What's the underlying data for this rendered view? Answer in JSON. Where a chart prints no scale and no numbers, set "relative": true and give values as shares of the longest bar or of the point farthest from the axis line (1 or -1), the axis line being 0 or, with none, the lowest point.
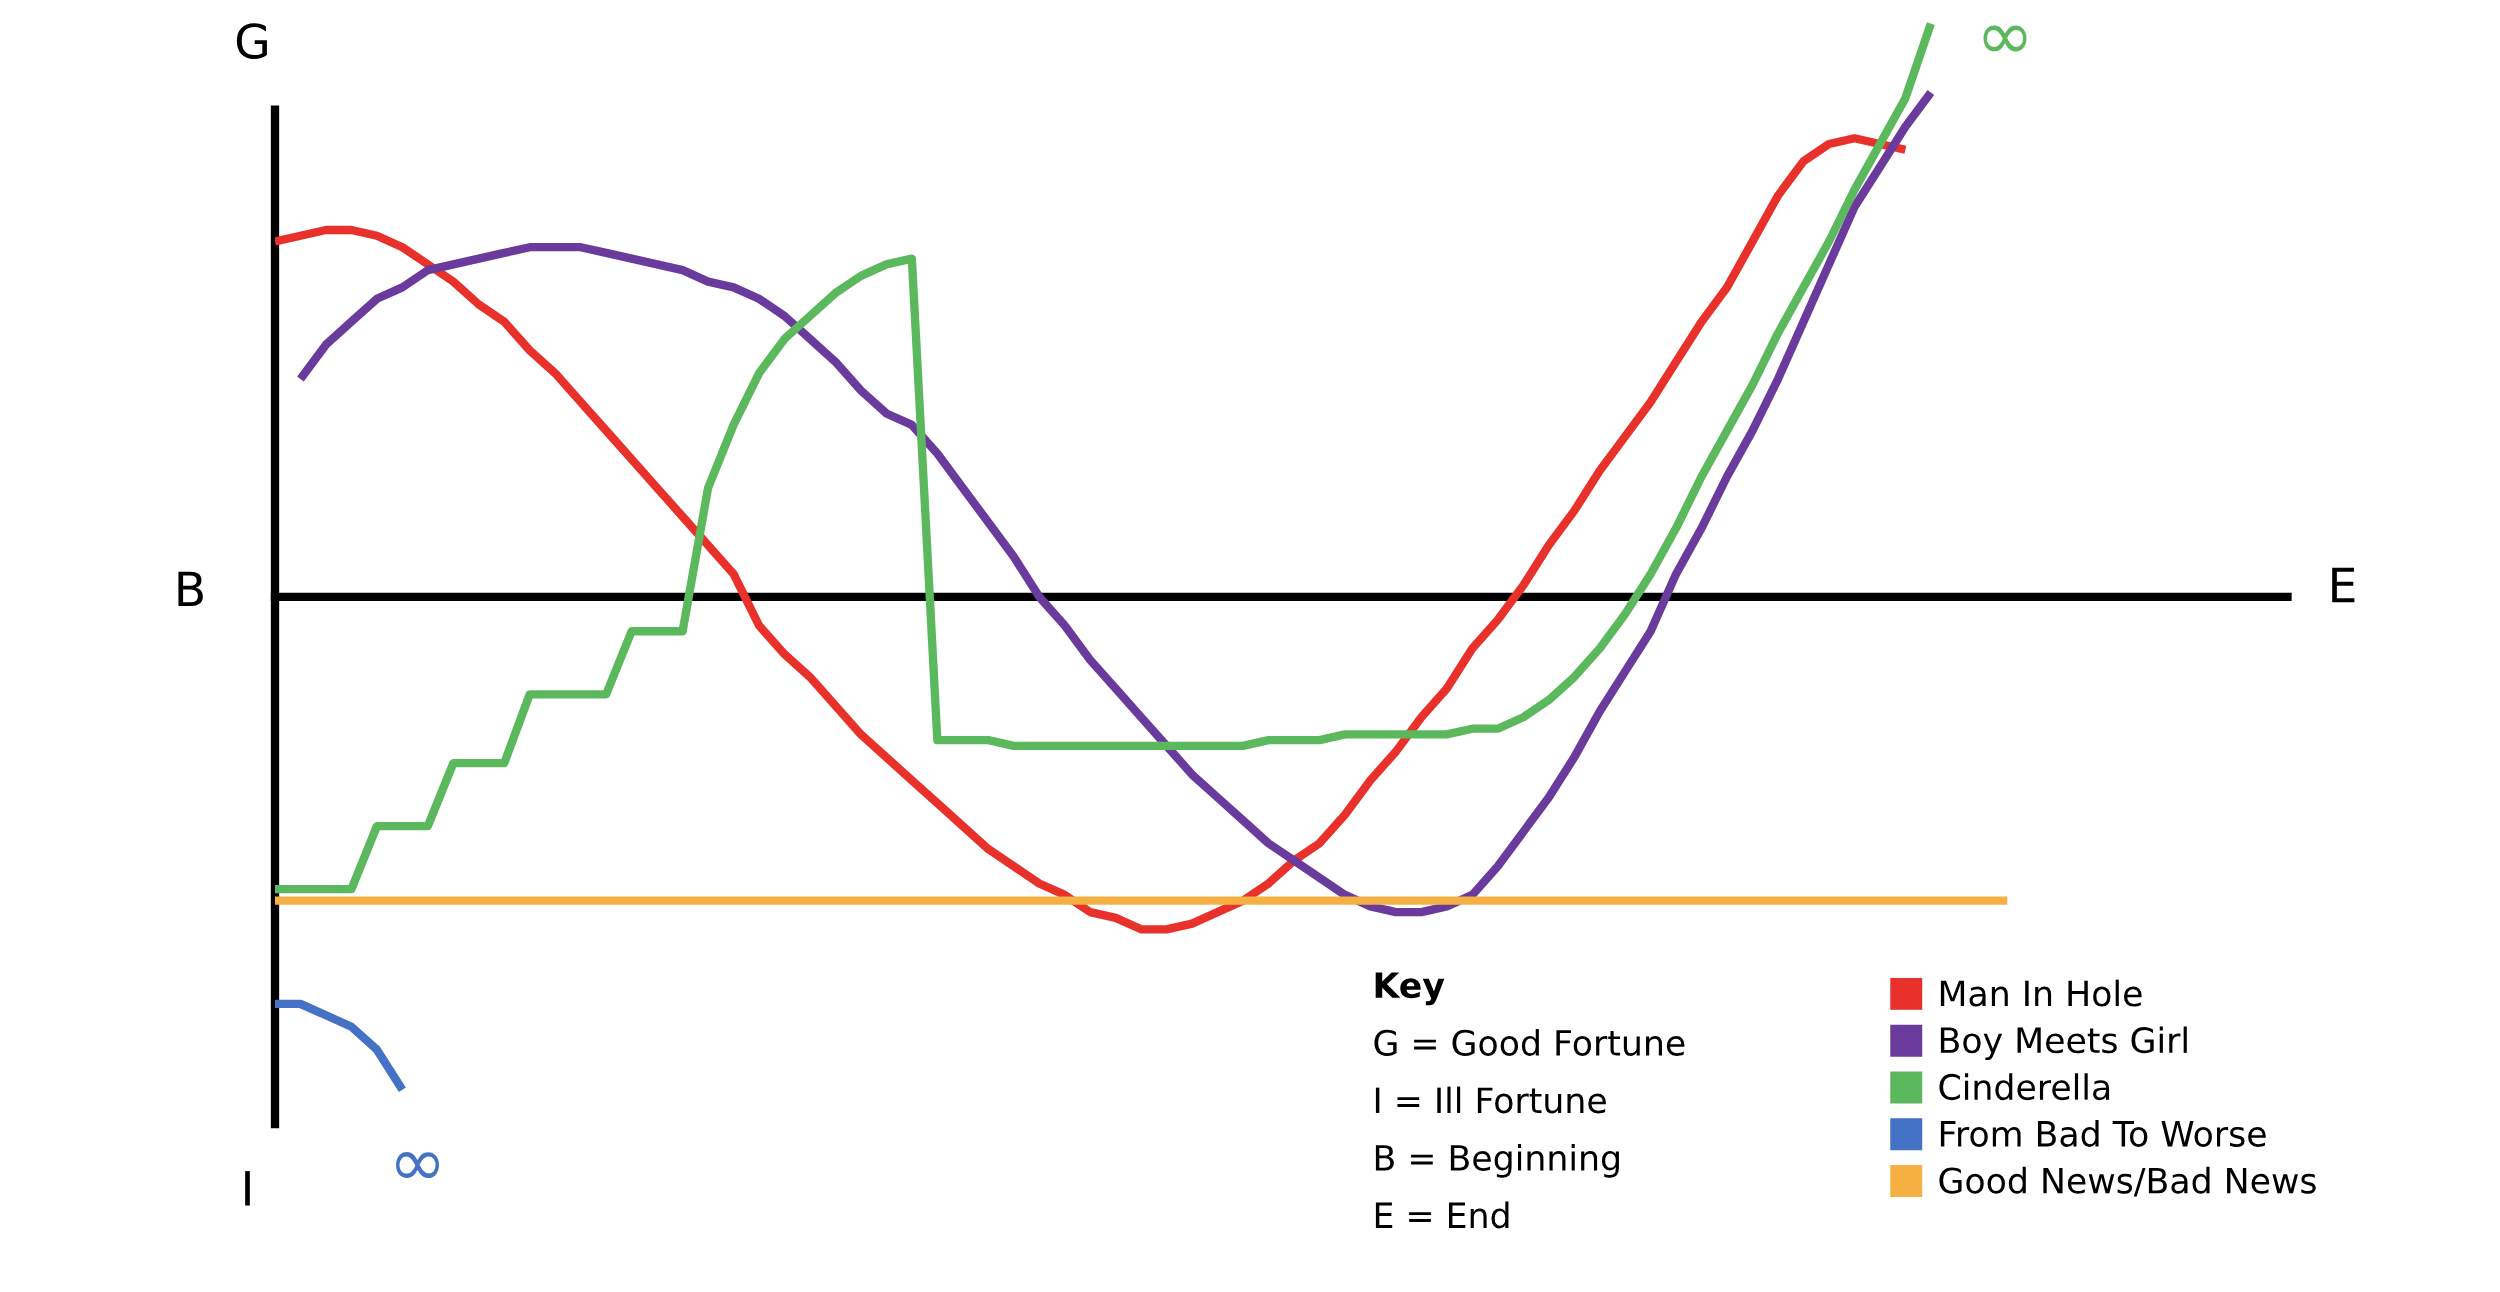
{
  "chart_data": {
    "type": "line",
    "relative": true,
    "legend": "bottom right",
    "categories": [
      null,
      null,
      null,
      null,
      null,
      null,
      null,
      null,
      null,
      null,
      null,
      null,
      null,
      null,
      null,
      null,
      null,
      null,
      null,
      null,
      null,
      null,
      null,
      null,
      null,
      null,
      null,
      null,
      null,
      null,
      null,
      null,
      null,
      null,
      null,
      null,
      null,
      null,
      null,
      null,
      null,
      null,
      null,
      null,
      null,
      null,
      null,
      null,
      null,
      null,
      null,
      null,
      null,
      null,
      null,
      null,
      null,
      null,
      null,
      null,
      null,
      null,
      null,
      null,
      null,
      null,
      null,
      null,
      null,
      null,
      null,
      null,
      null,
      null,
      null,
      null,
      null,
      null,
      null,
      null
    ],
    "series": [
      {
        "name": "Man In Hole",
        "color": "#e8312a",
        "values": [
          0.62,
          0.63,
          0.64,
          0.64,
          0.63,
          0.61,
          0.58,
          0.55,
          0.51,
          0.48,
          0.43,
          0.39,
          0.34,
          0.29,
          0.24,
          0.19,
          0.14,
          0.09,
          0.04,
          -0.05,
          -0.1,
          -0.14,
          -0.19,
          -0.24,
          -0.28,
          -0.32,
          -0.36,
          -0.4,
          -0.44,
          -0.47,
          -0.5,
          -0.52,
          -0.55,
          -0.56,
          -0.58,
          -0.58,
          -0.57,
          -0.55,
          -0.53,
          -0.5,
          -0.46,
          -0.43,
          -0.38,
          -0.32,
          -0.27,
          -0.21,
          -0.16,
          -0.09,
          -0.04,
          0.02,
          0.09,
          0.15,
          0.22,
          0.28,
          0.34,
          0.41,
          0.48,
          0.54,
          0.62,
          0.7,
          0.76,
          0.79,
          0.8,
          0.79,
          0.78,
          null,
          null,
          null,
          null,
          null,
          null,
          null,
          null,
          null,
          null,
          null,
          null,
          null,
          null,
          null
        ]
      },
      {
        "name": "Boy Meets Girl",
        "color": "#6a3b9c",
        "values": [
          null,
          0.38,
          0.44,
          0.48,
          0.52,
          0.54,
          0.57,
          0.58,
          0.59,
          0.6,
          0.61,
          0.61,
          0.61,
          0.6,
          0.59,
          0.58,
          0.57,
          0.55,
          0.54,
          0.52,
          0.49,
          0.45,
          0.41,
          0.36,
          0.32,
          0.3,
          0.25,
          0.19,
          0.13,
          0.07,
          0.0,
          -0.05,
          -0.11,
          -0.16,
          -0.21,
          -0.26,
          -0.31,
          -0.35,
          -0.39,
          -0.43,
          -0.46,
          -0.49,
          -0.52,
          -0.54,
          -0.55,
          -0.55,
          -0.54,
          -0.52,
          -0.47,
          -0.41,
          -0.35,
          -0.28,
          -0.2,
          -0.13,
          -0.06,
          0.04,
          0.12,
          0.21,
          0.29,
          0.38,
          0.48,
          0.58,
          0.68,
          0.75,
          0.82,
          0.88,
          null,
          null,
          null,
          null,
          null,
          null,
          null,
          null,
          null,
          null,
          null,
          null,
          null,
          null
        ]
      },
      {
        "name": "Cinderella",
        "color": "#5cb85c",
        "values": [
          -0.51,
          -0.51,
          -0.51,
          -0.51,
          -0.4,
          -0.4,
          -0.4,
          -0.29,
          -0.29,
          -0.29,
          -0.17,
          -0.17,
          -0.17,
          -0.17,
          -0.06,
          -0.06,
          -0.06,
          0.19,
          0.3,
          0.39,
          0.45,
          0.49,
          0.53,
          0.56,
          0.58,
          0.59,
          -0.25,
          -0.25,
          -0.25,
          -0.26,
          -0.26,
          -0.26,
          -0.26,
          -0.26,
          -0.26,
          -0.26,
          -0.26,
          -0.26,
          -0.26,
          -0.25,
          -0.25,
          -0.25,
          -0.24,
          -0.24,
          -0.24,
          -0.24,
          -0.24,
          -0.23,
          -0.23,
          -0.21,
          -0.18,
          -0.14,
          -0.09,
          -0.03,
          0.04,
          0.12,
          0.21,
          0.29,
          0.37,
          0.46,
          0.54,
          0.62,
          0.71,
          0.79,
          0.87,
          1.0,
          null,
          null,
          null,
          null,
          null,
          null,
          null,
          null,
          null,
          null,
          null,
          null,
          null,
          null
        ]
      },
      {
        "name": "From Bad To Worse",
        "color": "#4472c4",
        "values": [
          -0.71,
          -0.71,
          -0.73,
          -0.75,
          -0.79,
          -0.86,
          null,
          null,
          null,
          null,
          null,
          null,
          null,
          null,
          null,
          null,
          null,
          null,
          null,
          null,
          null,
          null,
          null,
          null,
          null,
          null,
          null,
          null,
          null,
          null,
          null,
          null,
          null,
          null,
          null,
          null,
          null,
          null,
          null,
          null,
          null,
          null,
          null,
          null,
          null,
          null,
          null,
          null,
          null,
          null,
          null,
          null,
          null,
          null,
          null,
          null,
          null,
          null,
          null,
          null,
          null,
          null,
          null,
          null,
          null,
          null,
          null,
          null,
          null,
          null,
          null,
          null,
          null,
          null,
          null,
          null,
          null,
          null,
          null,
          null
        ]
      },
      {
        "name": "Good News/Bad News",
        "color": "#f4b042",
        "values": [
          -0.53,
          -0.53,
          -0.53,
          -0.53,
          -0.53,
          -0.53,
          -0.53,
          -0.53,
          -0.53,
          -0.53,
          -0.53,
          -0.53,
          -0.53,
          -0.53,
          -0.53,
          -0.53,
          -0.53,
          -0.53,
          -0.53,
          -0.53,
          -0.53,
          -0.53,
          -0.53,
          -0.53,
          -0.53,
          -0.53,
          -0.53,
          -0.53,
          -0.53,
          -0.53,
          -0.53,
          -0.53,
          -0.53,
          -0.53,
          -0.53,
          -0.53,
          -0.53,
          -0.53,
          -0.53,
          -0.53,
          -0.53,
          -0.53,
          -0.53,
          -0.53,
          -0.53,
          -0.53,
          -0.53,
          -0.53,
          -0.53,
          -0.53,
          -0.53,
          -0.53,
          -0.53,
          -0.53,
          -0.53,
          -0.53,
          -0.53,
          -0.53,
          -0.53,
          -0.53,
          -0.53,
          -0.53,
          -0.53,
          -0.53,
          -0.53,
          -0.53,
          -0.53,
          -0.53,
          -0.53,
          null,
          null,
          null,
          null,
          null,
          null,
          null,
          null,
          null,
          null,
          null
        ]
      }
    ],
    "annotations": [
      "G",
      "I",
      "B",
      "E",
      "∞",
      "∞",
      "Key",
      "G = Good Fortune",
      "I = Ill Fortune",
      "B = Beginning",
      "E = End"
    ]
  }
}
